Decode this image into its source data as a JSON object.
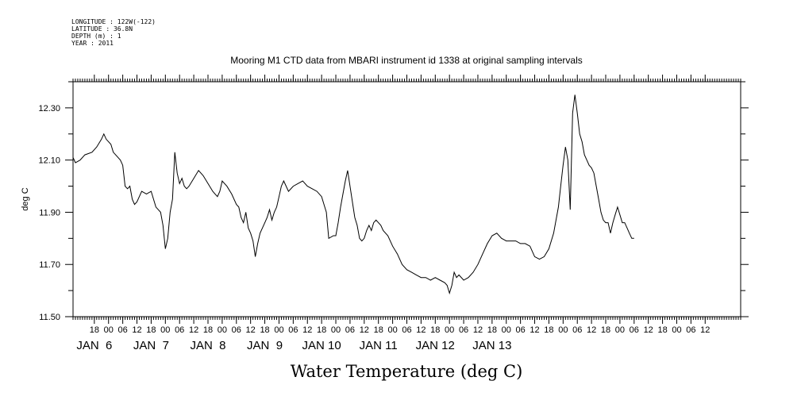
{
  "header": {
    "longitude": "LONGITUDE : 122W(-122)",
    "latitude": "LATITUDE : 36.8N",
    "depth": "DEPTH (m) : 1",
    "year": "YEAR : 2011"
  },
  "chart_data": {
    "type": "line",
    "title": "Mooring M1 CTD data from MBARI instrument id 1338 at original sampling intervals",
    "xlabel": "Water Temperature (deg C)",
    "ylabel": "deg C",
    "x_unit": "hours since JAN 6 00:00",
    "xlim": [
      -15,
      267
    ],
    "ylim": [
      11.5,
      12.4
    ],
    "y_ticks": [
      "11.50",
      "11.70",
      "11.90",
      "12.10",
      "12.30"
    ],
    "x_hour_ticks": [
      {
        "x": -6,
        "label": "18"
      },
      {
        "x": 0,
        "label": "00"
      },
      {
        "x": 6,
        "label": "06"
      },
      {
        "x": 12,
        "label": "12"
      },
      {
        "x": 18,
        "label": "18"
      },
      {
        "x": 24,
        "label": "00"
      },
      {
        "x": 30,
        "label": "06"
      },
      {
        "x": 36,
        "label": "12"
      },
      {
        "x": 42,
        "label": "18"
      },
      {
        "x": 48,
        "label": "00"
      },
      {
        "x": 54,
        "label": "06"
      },
      {
        "x": 60,
        "label": "12"
      },
      {
        "x": 66,
        "label": "18"
      },
      {
        "x": 72,
        "label": "00"
      },
      {
        "x": 78,
        "label": "06"
      },
      {
        "x": 84,
        "label": "12"
      },
      {
        "x": 90,
        "label": "18"
      },
      {
        "x": 96,
        "label": "00"
      },
      {
        "x": 102,
        "label": "06"
      },
      {
        "x": 108,
        "label": "12"
      },
      {
        "x": 114,
        "label": "18"
      },
      {
        "x": 120,
        "label": "00"
      },
      {
        "x": 126,
        "label": "06"
      },
      {
        "x": 132,
        "label": "12"
      },
      {
        "x": 138,
        "label": "18"
      },
      {
        "x": 144,
        "label": "00"
      },
      {
        "x": 150,
        "label": "06"
      },
      {
        "x": 156,
        "label": "12"
      },
      {
        "x": 162,
        "label": "18"
      },
      {
        "x": 168,
        "label": "00"
      },
      {
        "x": 174,
        "label": "06"
      },
      {
        "x": 180,
        "label": "12"
      },
      {
        "x": 186,
        "label": "18"
      },
      {
        "x": 192,
        "label": "00"
      },
      {
        "x": 198,
        "label": "06"
      },
      {
        "x": 204,
        "label": "12"
      },
      {
        "x": 210,
        "label": "18"
      },
      {
        "x": 216,
        "label": "00"
      },
      {
        "x": 222,
        "label": "06"
      },
      {
        "x": 228,
        "label": "12"
      },
      {
        "x": 234,
        "label": "18"
      },
      {
        "x": 240,
        "label": "00"
      },
      {
        "x": 246,
        "label": "06"
      },
      {
        "x": 252,
        "label": "12"
      }
    ],
    "x_day_labels": [
      {
        "x": -6,
        "label": "JAN  6"
      },
      {
        "x": 18,
        "label": "JAN  7"
      },
      {
        "x": 42,
        "label": "JAN  8"
      },
      {
        "x": 66,
        "label": "JAN  9"
      },
      {
        "x": 90,
        "label": "JAN 10"
      },
      {
        "x": 114,
        "label": "JAN 11"
      },
      {
        "x": 138,
        "label": "JAN 12"
      },
      {
        "x": 162,
        "label": "JAN 13"
      }
    ],
    "series": [
      {
        "color": "#000000",
        "points": [
          [
            -15,
            12.11
          ],
          [
            -14,
            12.09
          ],
          [
            -12,
            12.1
          ],
          [
            -10,
            12.12
          ],
          [
            -7,
            12.13
          ],
          [
            -5,
            12.15
          ],
          [
            -3,
            12.18
          ],
          [
            -2,
            12.2
          ],
          [
            -1,
            12.18
          ],
          [
            0,
            12.17
          ],
          [
            1,
            12.16
          ],
          [
            2,
            12.13
          ],
          [
            4,
            12.11
          ],
          [
            5,
            12.1
          ],
          [
            6,
            12.08
          ],
          [
            7,
            12.0
          ],
          [
            8,
            11.99
          ],
          [
            9,
            12.0
          ],
          [
            10,
            11.95
          ],
          [
            11,
            11.93
          ],
          [
            12,
            11.94
          ],
          [
            13,
            11.96
          ],
          [
            14,
            11.98
          ],
          [
            16,
            11.97
          ],
          [
            18,
            11.98
          ],
          [
            19,
            11.95
          ],
          [
            20,
            11.92
          ],
          [
            21,
            11.91
          ],
          [
            22,
            11.9
          ],
          [
            23,
            11.85
          ],
          [
            24,
            11.76
          ],
          [
            25,
            11.8
          ],
          [
            26,
            11.9
          ],
          [
            27,
            11.95
          ],
          [
            28,
            12.13
          ],
          [
            29,
            12.05
          ],
          [
            30,
            12.01
          ],
          [
            31,
            12.03
          ],
          [
            32,
            12.0
          ],
          [
            33,
            11.99
          ],
          [
            34,
            12.0
          ],
          [
            36,
            12.03
          ],
          [
            38,
            12.06
          ],
          [
            40,
            12.04
          ],
          [
            42,
            12.01
          ],
          [
            44,
            11.98
          ],
          [
            45,
            11.97
          ],
          [
            46,
            11.96
          ],
          [
            47,
            11.98
          ],
          [
            48,
            12.02
          ],
          [
            50,
            12.0
          ],
          [
            52,
            11.97
          ],
          [
            54,
            11.93
          ],
          [
            55,
            11.92
          ],
          [
            56,
            11.88
          ],
          [
            57,
            11.86
          ],
          [
            58,
            11.9
          ],
          [
            59,
            11.84
          ],
          [
            60,
            11.82
          ],
          [
            61,
            11.79
          ],
          [
            62,
            11.73
          ],
          [
            63,
            11.78
          ],
          [
            64,
            11.82
          ],
          [
            66,
            11.86
          ],
          [
            67,
            11.88
          ],
          [
            68,
            11.91
          ],
          [
            69,
            11.87
          ],
          [
            70,
            11.9
          ],
          [
            71,
            11.92
          ],
          [
            72,
            11.96
          ],
          [
            73,
            12.0
          ],
          [
            74,
            12.02
          ],
          [
            76,
            11.98
          ],
          [
            78,
            12.0
          ],
          [
            80,
            12.01
          ],
          [
            82,
            12.02
          ],
          [
            84,
            12.0
          ],
          [
            86,
            11.99
          ],
          [
            88,
            11.98
          ],
          [
            90,
            11.96
          ],
          [
            91,
            11.93
          ],
          [
            92,
            11.9
          ],
          [
            93,
            11.8
          ],
          [
            95,
            11.81
          ],
          [
            96,
            11.81
          ],
          [
            97,
            11.86
          ],
          [
            98,
            11.92
          ],
          [
            99,
            11.97
          ],
          [
            100,
            12.02
          ],
          [
            101,
            12.06
          ],
          [
            102,
            12.0
          ],
          [
            103,
            11.94
          ],
          [
            104,
            11.88
          ],
          [
            105,
            11.85
          ],
          [
            106,
            11.8
          ],
          [
            107,
            11.79
          ],
          [
            108,
            11.8
          ],
          [
            109,
            11.83
          ],
          [
            110,
            11.85
          ],
          [
            111,
            11.83
          ],
          [
            112,
            11.86
          ],
          [
            113,
            11.87
          ],
          [
            114,
            11.86
          ],
          [
            115,
            11.85
          ],
          [
            116,
            11.83
          ],
          [
            118,
            11.81
          ],
          [
            120,
            11.77
          ],
          [
            122,
            11.74
          ],
          [
            124,
            11.7
          ],
          [
            126,
            11.68
          ],
          [
            128,
            11.67
          ],
          [
            130,
            11.66
          ],
          [
            132,
            11.65
          ],
          [
            134,
            11.65
          ],
          [
            136,
            11.64
          ],
          [
            138,
            11.65
          ],
          [
            140,
            11.64
          ],
          [
            142,
            11.63
          ],
          [
            143,
            11.62
          ],
          [
            144,
            11.59
          ],
          [
            145,
            11.62
          ],
          [
            146,
            11.67
          ],
          [
            147,
            11.65
          ],
          [
            148,
            11.66
          ],
          [
            150,
            11.64
          ],
          [
            152,
            11.65
          ],
          [
            154,
            11.67
          ],
          [
            156,
            11.7
          ],
          [
            158,
            11.74
          ],
          [
            160,
            11.78
          ],
          [
            162,
            11.81
          ],
          [
            164,
            11.82
          ],
          [
            166,
            11.8
          ],
          [
            168,
            11.79
          ],
          [
            170,
            11.79
          ],
          [
            172,
            11.79
          ],
          [
            174,
            11.78
          ],
          [
            176,
            11.78
          ],
          [
            178,
            11.77
          ],
          [
            180,
            11.73
          ],
          [
            182,
            11.72
          ],
          [
            184,
            11.73
          ],
          [
            186,
            11.76
          ],
          [
            188,
            11.82
          ],
          [
            190,
            11.92
          ],
          [
            191,
            12.0
          ],
          [
            192,
            12.08
          ],
          [
            193,
            12.15
          ],
          [
            194,
            12.1
          ],
          [
            195,
            11.91
          ],
          [
            196,
            12.28
          ],
          [
            197,
            12.35
          ],
          [
            198,
            12.28
          ],
          [
            199,
            12.2
          ],
          [
            200,
            12.17
          ],
          [
            201,
            12.12
          ],
          [
            202,
            12.1
          ],
          [
            203,
            12.08
          ],
          [
            204,
            12.07
          ],
          [
            205,
            12.05
          ],
          [
            206,
            12.0
          ],
          [
            207,
            11.95
          ],
          [
            208,
            11.9
          ],
          [
            209,
            11.87
          ],
          [
            210,
            11.86
          ],
          [
            211,
            11.86
          ],
          [
            212,
            11.82
          ],
          [
            213,
            11.86
          ],
          [
            214,
            11.89
          ],
          [
            215,
            11.92
          ],
          [
            216,
            11.89
          ],
          [
            217,
            11.86
          ],
          [
            218,
            11.86
          ],
          [
            219,
            11.84
          ],
          [
            220,
            11.82
          ],
          [
            221,
            11.8
          ],
          [
            222,
            11.8
          ]
        ]
      }
    ]
  }
}
